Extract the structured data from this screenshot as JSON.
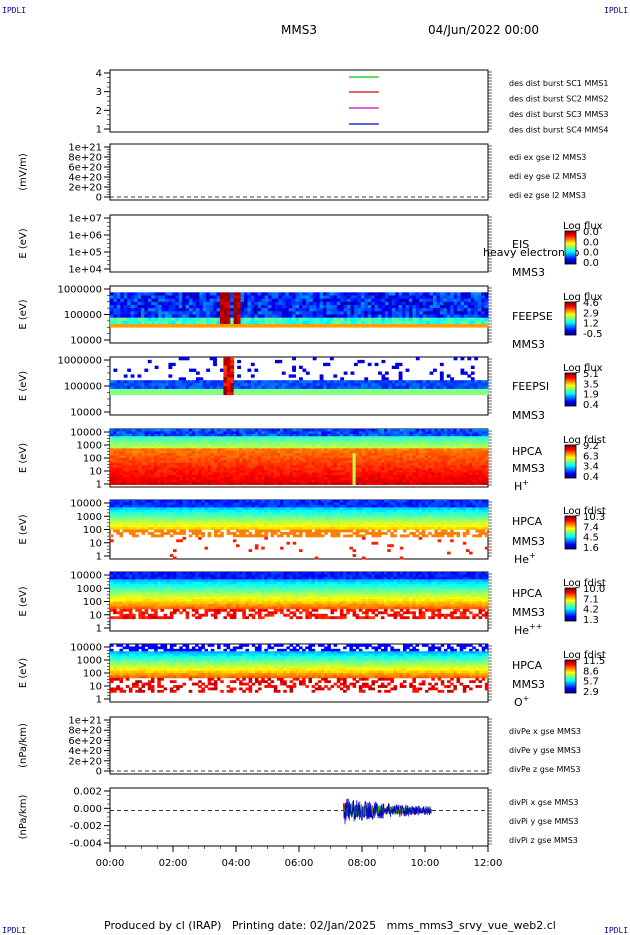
{
  "corners": {
    "tl": "IPDLI",
    "tr": "IPDLI",
    "bl": "IPDLI",
    "br": "IPDLI"
  },
  "header": {
    "title": "MMS3",
    "date": "04/Jun/2022 00:00"
  },
  "footer": {
    "produced": "Produced by cl (IRAP)",
    "printing": "Printing date: 02/Jan/2025",
    "file": "mms_mms3_srvy_vue_web2.cl"
  },
  "colors": {
    "red": "#e00000",
    "green": "#00c800",
    "blue": "#0000d0",
    "magenta": "#d000d0"
  },
  "x_ticks": [
    "00:00",
    "02:00",
    "04:00",
    "06:00",
    "08:00",
    "10:00",
    "12:00"
  ],
  "panels": {
    "p1": {
      "ticks": [
        "4",
        "3",
        "2",
        "1"
      ],
      "legend": [
        {
          "text": "des dist burst SC1 MMS1",
          "color": "blue"
        },
        {
          "text": "des dist burst SC2 MMS2",
          "color": "magenta"
        },
        {
          "text": "des dist burst SC3 MMS3",
          "color": "red"
        },
        {
          "text": "des dist burst SC4 MMS4",
          "color": "green"
        }
      ]
    },
    "p2": {
      "ylabel": "(mV/m)",
      "ticks": [
        "1e+21",
        "8e+20",
        "6e+20",
        "4e+20",
        "2e+20",
        "0"
      ],
      "legend": [
        {
          "text": "edi ex gse l2 MMS3",
          "color": "red"
        },
        {
          "text": "edi ey gse l2 MMS3",
          "color": "green"
        },
        {
          "text": "edi ez gse l2 MMS3",
          "color": "blue"
        }
      ]
    },
    "p3": {
      "ylabel": "E (eV)",
      "ticks": [
        "1e+07",
        "1e+06",
        "1e+05",
        "1e+04"
      ],
      "name": "EIS",
      "sc": "MMS3",
      "overlay": "heavy electron to",
      "cb_title": "Log flux",
      "cb_ticks": [
        "0.0",
        "0.0",
        "0.0",
        "0.0"
      ]
    },
    "p4": {
      "ylabel": "E (eV)",
      "ticks": [
        "1000000",
        "100000",
        "10000"
      ],
      "name": "FEEPSE",
      "sc": "MMS3",
      "cb_title": "Log flux",
      "cb_ticks": [
        "4.6",
        "2.9",
        "1.2",
        "-0.5"
      ]
    },
    "p5": {
      "ylabel": "E (eV)",
      "ticks": [
        "1000000",
        "100000",
        "10000"
      ],
      "name": "FEEPSI",
      "sc": "MMS3",
      "cb_title": "Log flux",
      "cb_ticks": [
        "5.1",
        "3.5",
        "1.9",
        "0.4"
      ]
    },
    "p6": {
      "ylabel": "E (eV)",
      "ticks": [
        "10000",
        "1000",
        "100",
        "10",
        "1"
      ],
      "name": "HPCA",
      "sc": "MMS3",
      "ion": "H",
      "charge": "+",
      "cb_title": "Log fdist",
      "cb_ticks": [
        "9.2",
        "6.3",
        "3.4",
        "0.4"
      ]
    },
    "p7": {
      "ylabel": "E (eV)",
      "ticks": [
        "10000",
        "1000",
        "100",
        "10",
        "1"
      ],
      "name": "HPCA",
      "sc": "MMS3",
      "ion": "He",
      "charge": "+",
      "cb_title": "Log fdist",
      "cb_ticks": [
        "10.3",
        "7.4",
        "4.5",
        "1.6"
      ]
    },
    "p8": {
      "ylabel": "E (eV)",
      "ticks": [
        "10000",
        "1000",
        "100",
        "10",
        "1"
      ],
      "name": "HPCA",
      "sc": "MMS3",
      "ion": "He",
      "charge": "++",
      "cb_title": "Log fdist",
      "cb_ticks": [
        "10.0",
        "7.1",
        "4.2",
        "1.3"
      ]
    },
    "p9": {
      "ylabel": "E (eV)",
      "ticks": [
        "10000",
        "1000",
        "100",
        "10",
        "1"
      ],
      "name": "HPCA",
      "sc": "MMS3",
      "ion": "O",
      "charge": "+",
      "cb_title": "Log fdist",
      "cb_ticks": [
        "11.5",
        "8.6",
        "5.7",
        "2.9"
      ]
    },
    "p10": {
      "ylabel": "(nPa/km)",
      "ticks": [
        "1e+21",
        "8e+20",
        "6e+20",
        "4e+20",
        "2e+20",
        "0"
      ],
      "legend": [
        {
          "text": "divPe x gse MMS3",
          "color": "red"
        },
        {
          "text": "divPe y gse MMS3",
          "color": "green"
        },
        {
          "text": "divPe z gse MMS3",
          "color": "blue"
        }
      ]
    },
    "p11": {
      "ylabel": "(nPa/km)",
      "ticks": [
        "0.002",
        "0.000",
        "-0.002",
        "-0.004"
      ],
      "legend": [
        {
          "text": "divPi x gse MMS3",
          "color": "red"
        },
        {
          "text": "divPi y gse MMS3",
          "color": "green"
        },
        {
          "text": "divPi z gse MMS3",
          "color": "blue"
        }
      ]
    }
  },
  "chart_data": {
    "type": "heatmap",
    "title": "MMS3",
    "subtitle": "04/Jun/2022 00:00",
    "x_range": [
      "00:00",
      "12:00"
    ],
    "burst_intervals": [
      {
        "spacecraft": "MMS1",
        "y": 1,
        "start": "07:35",
        "end": "08:32"
      },
      {
        "spacecraft": "MMS2",
        "y": 2,
        "start": "07:35",
        "end": "08:32"
      },
      {
        "spacecraft": "MMS3",
        "y": 3,
        "start": "07:35",
        "end": "08:32"
      },
      {
        "spacecraft": "MMS4",
        "y": 4,
        "start": "07:35",
        "end": "08:32"
      }
    ],
    "divPi_range": {
      "start": "07:25",
      "end": "10:12",
      "ylim": [
        -0.005,
        0.003
      ]
    },
    "spectrograms": [
      "EIS",
      "FEEPSE",
      "FEEPSI",
      "HPCA H+",
      "HPCA He+",
      "HPCA He++",
      "HPCA O+"
    ]
  }
}
